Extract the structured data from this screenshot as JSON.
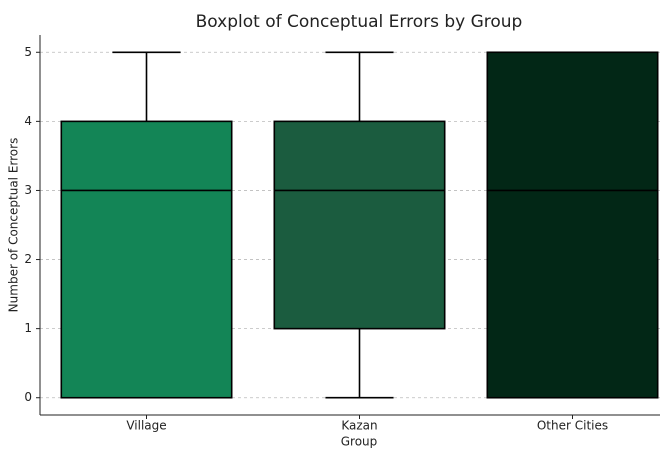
{
  "chart_data": {
    "type": "box",
    "title": "Boxplot of Conceptual Errors by Group",
    "xlabel": "Group",
    "ylabel": "Number of Conceptual Errors",
    "categories": [
      "Village",
      "Kazan",
      "Other Cities"
    ],
    "colors": [
      "#138556",
      "#1b5c3f",
      "#022716"
    ],
    "boxes": [
      {
        "min": 0,
        "q1": 0,
        "median": 3,
        "q3": 4,
        "max": 5
      },
      {
        "min": 0,
        "q1": 1,
        "median": 3,
        "q3": 4,
        "max": 5
      },
      {
        "min": 0,
        "q1": 0,
        "median": 3,
        "q3": 5,
        "max": 5
      }
    ],
    "ylim": [
      -0.25,
      5.25
    ],
    "yticks": [
      0,
      1,
      2,
      3,
      4,
      5
    ],
    "grid": true
  }
}
